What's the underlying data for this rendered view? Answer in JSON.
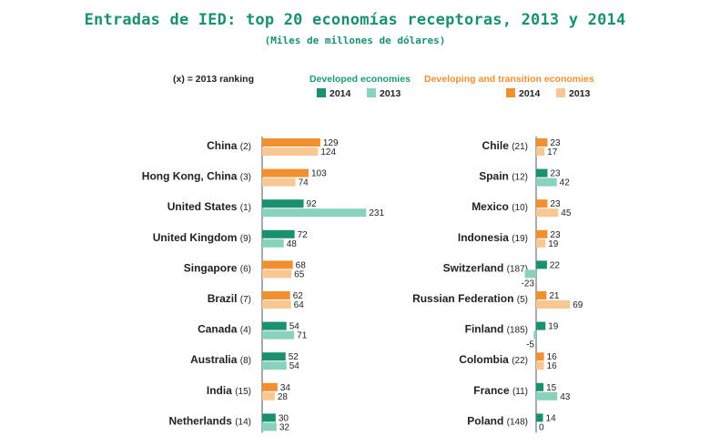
{
  "title": "Entradas de IED: top 20 economías receptoras, 2013 y 2014",
  "subtitle": "(Miles de millones de dólares)",
  "ranking_note": "(x) = 2013 ranking",
  "legend": {
    "developed": "Developed economies",
    "developing": "Developing and transition economies",
    "year_2014": "2014",
    "year_2013": "2013"
  },
  "colors": {
    "developed_2014": "#1a9070",
    "developed_2013": "#88d2bb",
    "developing_2014": "#f0902e",
    "developing_2013": "#f9c792",
    "title": "#1a9070",
    "developed_text": "#1a9a78",
    "developing_text": "#f0902e"
  },
  "chart_data": {
    "type": "bar",
    "orientation": "horizontal",
    "groups": [
      {
        "items": [
          {
            "name": "China",
            "rank": "(2)",
            "group": "developing",
            "v2014": 129,
            "v2013": 124
          },
          {
            "name": "Hong Kong, China",
            "rank": "(3)",
            "group": "developing",
            "v2014": 103,
            "v2013": 74
          },
          {
            "name": "United States",
            "rank": "(1)",
            "group": "developed",
            "v2014": 92,
            "v2013": 231
          },
          {
            "name": "United Kingdom",
            "rank": "(9)",
            "group": "developed",
            "v2014": 72,
            "v2013": 48
          },
          {
            "name": "Singapore",
            "rank": "(6)",
            "group": "developing",
            "v2014": 68,
            "v2013": 65
          },
          {
            "name": "Brazil",
            "rank": "(7)",
            "group": "developing",
            "v2014": 62,
            "v2013": 64
          },
          {
            "name": "Canada",
            "rank": "(4)",
            "group": "developed",
            "v2014": 54,
            "v2013": 71
          },
          {
            "name": "Australia",
            "rank": "(8)",
            "group": "developed",
            "v2014": 52,
            "v2013": 54
          },
          {
            "name": "India",
            "rank": "(15)",
            "group": "developing",
            "v2014": 34,
            "v2013": 28
          },
          {
            "name": "Netherlands",
            "rank": "(14)",
            "group": "developed",
            "v2014": 30,
            "v2013": 32
          }
        ]
      },
      {
        "items": [
          {
            "name": "Chile",
            "rank": "(21)",
            "group": "developing",
            "v2014": 23,
            "v2013": 17
          },
          {
            "name": "Spain",
            "rank": "(12)",
            "group": "developed",
            "v2014": 23,
            "v2013": 42
          },
          {
            "name": "Mexico",
            "rank": "(10)",
            "group": "developing",
            "v2014": 23,
            "v2013": 45
          },
          {
            "name": "Indonesia",
            "rank": "(19)",
            "group": "developing",
            "v2014": 23,
            "v2013": 19
          },
          {
            "name": "Switzerland",
            "rank": "(187)",
            "group": "developed",
            "v2014": 22,
            "v2013": -23
          },
          {
            "name": "Russian Federation",
            "rank": "(5)",
            "group": "developing",
            "v2014": 21,
            "v2013": 69
          },
          {
            "name": "Finland",
            "rank": "(185)",
            "group": "developed",
            "v2014": 19,
            "v2013": -5
          },
          {
            "name": "Colombia",
            "rank": "(22)",
            "group": "developing",
            "v2014": 16,
            "v2013": 16
          },
          {
            "name": "France",
            "rank": "(11)",
            "group": "developed",
            "v2014": 15,
            "v2013": 43
          },
          {
            "name": "Poland",
            "rank": "(148)",
            "group": "developed",
            "v2014": 14,
            "v2013": 0
          }
        ]
      }
    ]
  }
}
